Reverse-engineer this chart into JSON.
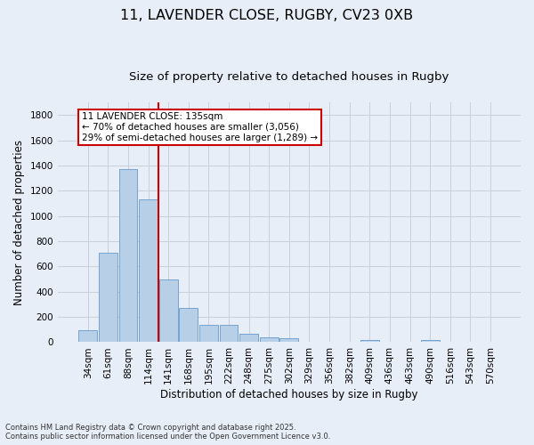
{
  "title1": "11, LAVENDER CLOSE, RUGBY, CV23 0XB",
  "title2": "Size of property relative to detached houses in Rugby",
  "xlabel": "Distribution of detached houses by size in Rugby",
  "ylabel": "Number of detached properties",
  "categories": [
    "34sqm",
    "61sqm",
    "88sqm",
    "114sqm",
    "141sqm",
    "168sqm",
    "195sqm",
    "222sqm",
    "248sqm",
    "275sqm",
    "302sqm",
    "329sqm",
    "356sqm",
    "382sqm",
    "409sqm",
    "436sqm",
    "463sqm",
    "490sqm",
    "516sqm",
    "543sqm",
    "570sqm"
  ],
  "values": [
    97,
    706,
    1374,
    1134,
    500,
    272,
    140,
    140,
    65,
    35,
    33,
    0,
    0,
    0,
    14,
    0,
    0,
    18,
    0,
    0,
    0
  ],
  "bar_color": "#b8cfe8",
  "bar_edgecolor": "#6699cc",
  "bar_linewidth": 0.6,
  "vline_x": 3.5,
  "vline_color": "#cc0000",
  "annotation_text": "11 LAVENDER CLOSE: 135sqm\n← 70% of detached houses are smaller (3,056)\n29% of semi-detached houses are larger (1,289) →",
  "annotation_box_edgecolor": "#cc0000",
  "annotation_box_facecolor": "#ffffff",
  "ylim": [
    0,
    1900
  ],
  "yticks": [
    0,
    200,
    400,
    600,
    800,
    1000,
    1200,
    1400,
    1600,
    1800
  ],
  "background_color": "#e8eef8",
  "grid_color": "#c8d0dc",
  "footer1": "Contains HM Land Registry data © Crown copyright and database right 2025.",
  "footer2": "Contains public sector information licensed under the Open Government Licence v3.0.",
  "title_fontsize": 11.5,
  "subtitle_fontsize": 9.5,
  "axis_label_fontsize": 8.5,
  "tick_fontsize": 7.5,
  "annotation_fontsize": 7.5,
  "footer_fontsize": 6.0
}
